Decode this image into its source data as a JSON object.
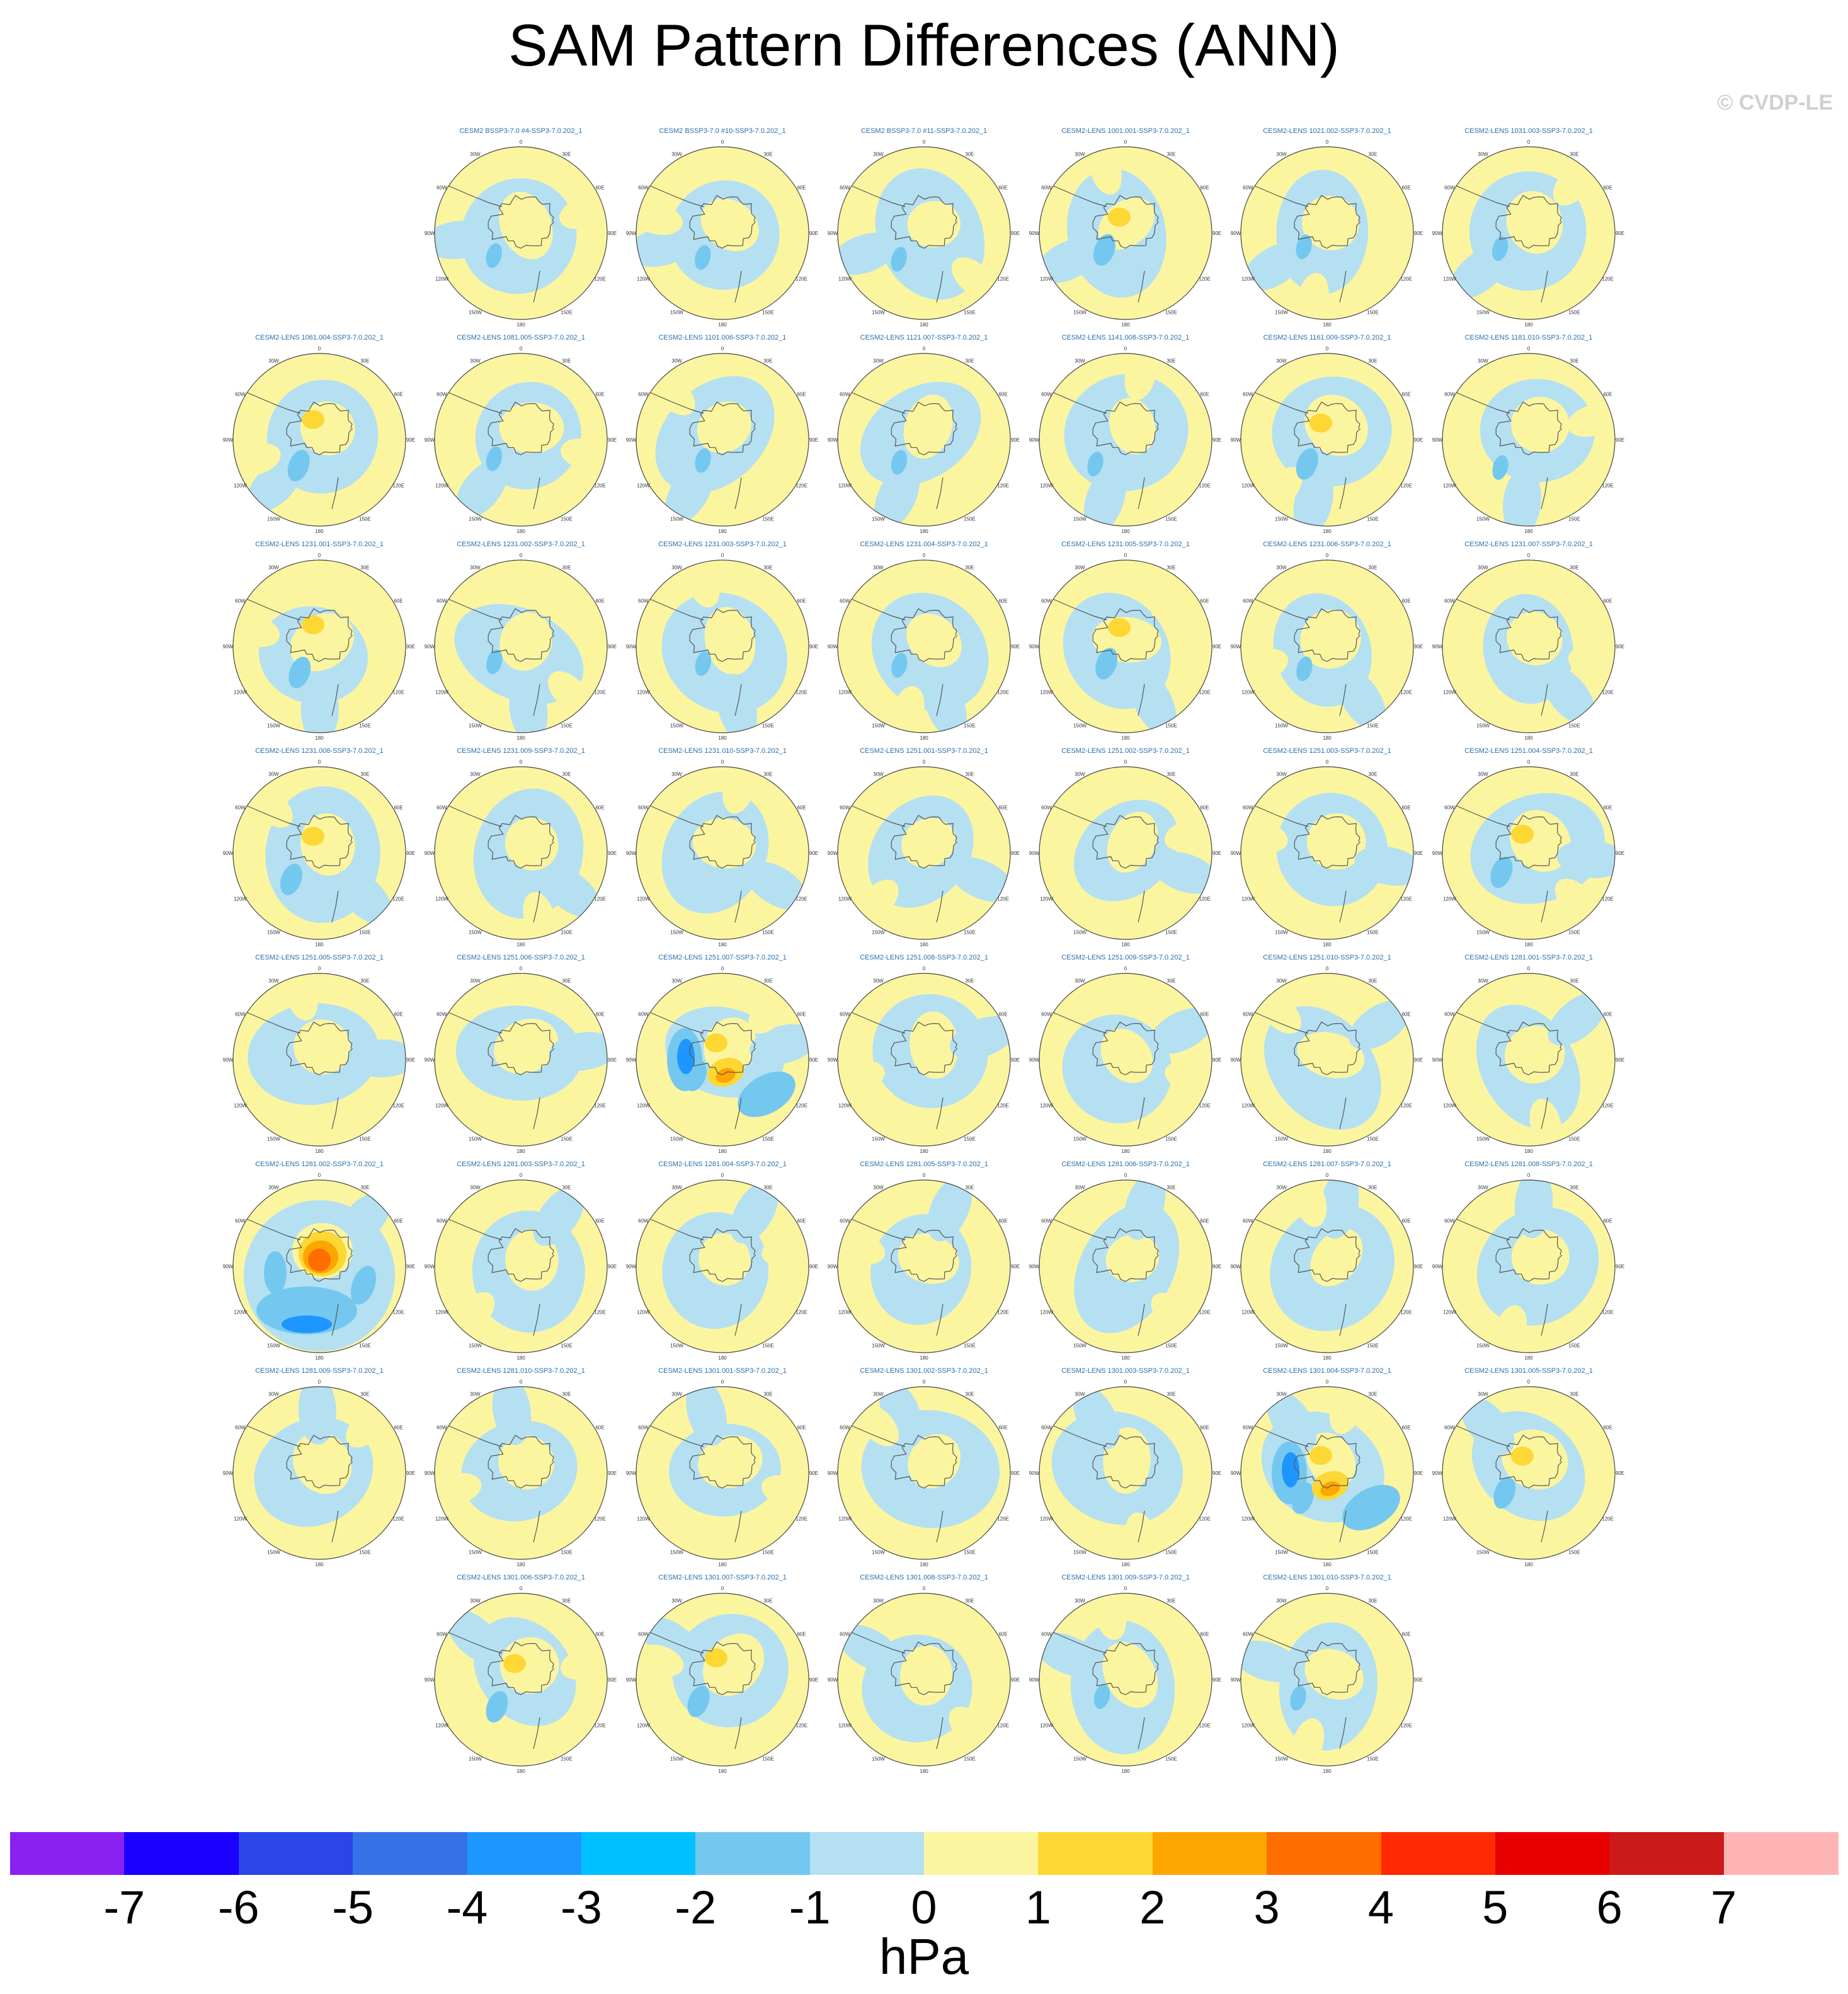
{
  "title": "SAM Pattern Differences (ANN)",
  "watermark": "© CVDP-LE",
  "chart_data": {
    "type": "heatmap",
    "projection": "south-polar-stereographic",
    "units": "hPa",
    "lon_labels": [
      "0",
      "30E",
      "60E",
      "90E",
      "120E",
      "150E",
      "180",
      "150W",
      "120W",
      "90W",
      "60W",
      "30W"
    ],
    "colorbar": {
      "levels": [
        -7,
        -6,
        -5,
        -4,
        -3,
        -2,
        -1,
        0,
        1,
        2,
        3,
        4,
        5,
        6,
        7
      ],
      "colors": [
        "#8a1ff2",
        "#1a00ff",
        "#2a45e8",
        "#3572e8",
        "#1e96ff",
        "#00c0ff",
        "#74c8ef",
        "#b4e0f2",
        "#fcf5a0",
        "#fdd733",
        "#fda500",
        "#fd6d00",
        "#ff2a00",
        "#e80000",
        "#cc1a1a",
        "#ffb4b4"
      ]
    },
    "panels": [
      {
        "row": 0,
        "col": 1,
        "name": "CESM2 BSSP3-7.0 #4-SSP3-7.0.202_1",
        "pattern": "weak"
      },
      {
        "row": 0,
        "col": 2,
        "name": "CESM2 BSSP3-7.0 #10-SSP3-7.0.202_1",
        "pattern": "weak"
      },
      {
        "row": 0,
        "col": 3,
        "name": "CESM2 BSSP3-7.0 #11-SSP3-7.0.202_1",
        "pattern": "weak"
      },
      {
        "row": 0,
        "col": 4,
        "name": "CESM2-LENS 1001.001-SSP3-7.0.202_1",
        "pattern": "moderate"
      },
      {
        "row": 0,
        "col": 5,
        "name": "CESM2-LENS 1021.002-SSP3-7.0.202_1",
        "pattern": "weak"
      },
      {
        "row": 0,
        "col": 6,
        "name": "CESM2-LENS 1031.003-SSP3-7.0.202_1",
        "pattern": "weak"
      },
      {
        "row": 1,
        "col": 0,
        "name": "CESM2-LENS 1061.004-SSP3-7.0.202_1",
        "pattern": "moderate"
      },
      {
        "row": 1,
        "col": 1,
        "name": "CESM2-LENS 1081.005-SSP3-7.0.202_1",
        "pattern": "weak"
      },
      {
        "row": 1,
        "col": 2,
        "name": "CESM2-LENS 1101.006-SSP3-7.0.202_1",
        "pattern": "weak"
      },
      {
        "row": 1,
        "col": 3,
        "name": "CESM2-LENS 1121.007-SSP3-7.0.202_1",
        "pattern": "weak"
      },
      {
        "row": 1,
        "col": 4,
        "name": "CESM2-LENS 1141.008-SSP3-7.0.202_1",
        "pattern": "weak"
      },
      {
        "row": 1,
        "col": 5,
        "name": "CESM2-LENS 1161.009-SSP3-7.0.202_1",
        "pattern": "moderate"
      },
      {
        "row": 1,
        "col": 6,
        "name": "CESM2-LENS 1181.010-SSP3-7.0.202_1",
        "pattern": "weak"
      },
      {
        "row": 2,
        "col": 0,
        "name": "CESM2-LENS 1231.001-SSP3-7.0.202_1",
        "pattern": "moderate"
      },
      {
        "row": 2,
        "col": 1,
        "name": "CESM2-LENS 1231.002-SSP3-7.0.202_1",
        "pattern": "weak"
      },
      {
        "row": 2,
        "col": 2,
        "name": "CESM2-LENS 1231.003-SSP3-7.0.202_1",
        "pattern": "weak"
      },
      {
        "row": 2,
        "col": 3,
        "name": "CESM2-LENS 1231.004-SSP3-7.0.202_1",
        "pattern": "weak"
      },
      {
        "row": 2,
        "col": 4,
        "name": "CESM2-LENS 1231.005-SSP3-7.0.202_1",
        "pattern": "moderate"
      },
      {
        "row": 2,
        "col": 5,
        "name": "CESM2-LENS 1231.006-SSP3-7.0.202_1",
        "pattern": "weak"
      },
      {
        "row": 2,
        "col": 6,
        "name": "CESM2-LENS 1231.007-SSP3-7.0.202_1",
        "pattern": "weak"
      },
      {
        "row": 3,
        "col": 0,
        "name": "CESM2-LENS 1231.008-SSP3-7.0.202_1",
        "pattern": "moderate"
      },
      {
        "row": 3,
        "col": 1,
        "name": "CESM2-LENS 1231.009-SSP3-7.0.202_1",
        "pattern": "weak"
      },
      {
        "row": 3,
        "col": 2,
        "name": "CESM2-LENS 1231.010-SSP3-7.0.202_1",
        "pattern": "weak"
      },
      {
        "row": 3,
        "col": 3,
        "name": "CESM2-LENS 1251.001-SSP3-7.0.202_1",
        "pattern": "weak"
      },
      {
        "row": 3,
        "col": 4,
        "name": "CESM2-LENS 1251.002-SSP3-7.0.202_1",
        "pattern": "weak"
      },
      {
        "row": 3,
        "col": 5,
        "name": "CESM2-LENS 1251.003-SSP3-7.0.202_1",
        "pattern": "weak"
      },
      {
        "row": 3,
        "col": 6,
        "name": "CESM2-LENS 1251.004-SSP3-7.0.202_1",
        "pattern": "moderate"
      },
      {
        "row": 4,
        "col": 0,
        "name": "CESM2-LENS 1251.005-SSP3-7.0.202_1",
        "pattern": "weak"
      },
      {
        "row": 4,
        "col": 1,
        "name": "CESM2-LENS 1251.006-SSP3-7.0.202_1",
        "pattern": "weak"
      },
      {
        "row": 4,
        "col": 2,
        "name": "CESM2-LENS 1251.007-SSP3-7.0.202_1",
        "pattern": "strong"
      },
      {
        "row": 4,
        "col": 3,
        "name": "CESM2-LENS 1251.008-SSP3-7.0.202_1",
        "pattern": "weak"
      },
      {
        "row": 4,
        "col": 4,
        "name": "CESM2-LENS 1251.009-SSP3-7.0.202_1",
        "pattern": "weak"
      },
      {
        "row": 4,
        "col": 5,
        "name": "CESM2-LENS 1251.010-SSP3-7.0.202_1",
        "pattern": "weak"
      },
      {
        "row": 4,
        "col": 6,
        "name": "CESM2-LENS 1281.001-SSP3-7.0.202_1",
        "pattern": "weak"
      },
      {
        "row": 5,
        "col": 0,
        "name": "CESM2-LENS 1281.002-SSP3-7.0.202_1",
        "pattern": "strongest"
      },
      {
        "row": 5,
        "col": 1,
        "name": "CESM2-LENS 1281.003-SSP3-7.0.202_1",
        "pattern": "weak"
      },
      {
        "row": 5,
        "col": 2,
        "name": "CESM2-LENS 1281.004-SSP3-7.0.202_1",
        "pattern": "weak"
      },
      {
        "row": 5,
        "col": 3,
        "name": "CESM2-LENS 1281.005-SSP3-7.0.202_1",
        "pattern": "weak"
      },
      {
        "row": 5,
        "col": 4,
        "name": "CESM2-LENS 1281.006-SSP3-7.0.202_1",
        "pattern": "weak"
      },
      {
        "row": 5,
        "col": 5,
        "name": "CESM2-LENS 1281.007-SSP3-7.0.202_1",
        "pattern": "weak"
      },
      {
        "row": 5,
        "col": 6,
        "name": "CESM2-LENS 1281.008-SSP3-7.0.202_1",
        "pattern": "weak"
      },
      {
        "row": 6,
        "col": 0,
        "name": "CESM2-LENS 1281.009-SSP3-7.0.202_1",
        "pattern": "weak"
      },
      {
        "row": 6,
        "col": 1,
        "name": "CESM2-LENS 1281.010-SSP3-7.0.202_1",
        "pattern": "weak"
      },
      {
        "row": 6,
        "col": 2,
        "name": "CESM2-LENS 1301.001-SSP3-7.0.202_1",
        "pattern": "weak"
      },
      {
        "row": 6,
        "col": 3,
        "name": "CESM2-LENS 1301.002-SSP3-7.0.202_1",
        "pattern": "weak"
      },
      {
        "row": 6,
        "col": 4,
        "name": "CESM2-LENS 1301.003-SSP3-7.0.202_1",
        "pattern": "weak"
      },
      {
        "row": 6,
        "col": 5,
        "name": "CESM2-LENS 1301.004-SSP3-7.0.202_1",
        "pattern": "strong"
      },
      {
        "row": 6,
        "col": 6,
        "name": "CESM2-LENS 1301.005-SSP3-7.0.202_1",
        "pattern": "moderate"
      },
      {
        "row": 7,
        "col": 1,
        "name": "CESM2-LENS 1301.006-SSP3-7.0.202_1",
        "pattern": "moderate"
      },
      {
        "row": 7,
        "col": 2,
        "name": "CESM2-LENS 1301.007-SSP3-7.0.202_1",
        "pattern": "moderate"
      },
      {
        "row": 7,
        "col": 3,
        "name": "CESM2-LENS 1301.008-SSP3-7.0.202_1",
        "pattern": "weak"
      },
      {
        "row": 7,
        "col": 4,
        "name": "CESM2-LENS 1301.009-SSP3-7.0.202_1",
        "pattern": "weak"
      },
      {
        "row": 7,
        "col": 5,
        "name": "CESM2-LENS 1301.010-SSP3-7.0.202_1",
        "pattern": "weak"
      }
    ]
  }
}
